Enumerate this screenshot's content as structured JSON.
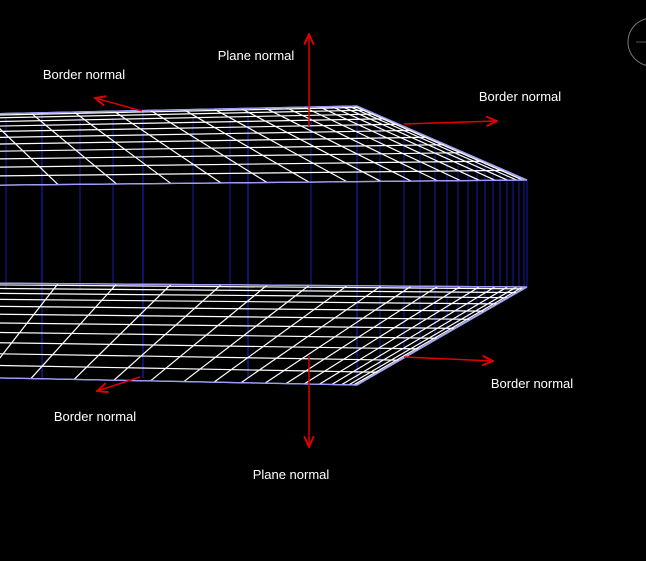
{
  "labels": {
    "top_plane_normal": "Plane normal",
    "top_left_border_normal": "Border normal",
    "top_right_border_normal": "Border normal",
    "bottom_right_border_normal": "Border normal",
    "bottom_left_border_normal": "Border normal",
    "bottom_plane_normal": "Plane normal"
  },
  "colors": {
    "background": "#000000",
    "grid": "#ffffff",
    "plane_edge": "#9a9aff",
    "connector": "#1a1aa8",
    "normal_arrow": "#e00000"
  }
}
